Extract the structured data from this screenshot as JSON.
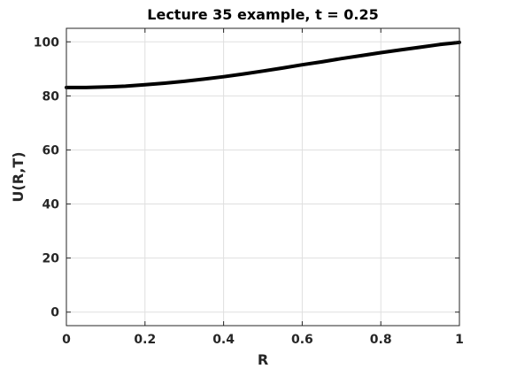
{
  "chart_data": {
    "type": "line",
    "title": "Lecture 35 example, t = 0.25",
    "xlabel": "R",
    "ylabel": "U(R,T)",
    "xlim": [
      0,
      1
    ],
    "ylim": [
      -5,
      105
    ],
    "xticks": [
      0,
      0.2,
      0.4,
      0.6,
      0.8,
      1
    ],
    "xtick_labels": [
      "0",
      "0.2",
      "0.4",
      "0.6",
      "0.8",
      "1"
    ],
    "yticks": [
      0,
      20,
      40,
      60,
      80,
      100
    ],
    "ytick_labels": [
      "0",
      "20",
      "40",
      "60",
      "80",
      "100"
    ],
    "grid": true,
    "series": [
      {
        "color": "#000000",
        "x": [
          0,
          0.05,
          0.1,
          0.15,
          0.2,
          0.25,
          0.3,
          0.35,
          0.4,
          0.45,
          0.5,
          0.55,
          0.6,
          0.65,
          0.7,
          0.75,
          0.8,
          0.85,
          0.9,
          0.95,
          1
        ],
        "y": [
          83.1,
          83.1,
          83.3,
          83.6,
          84.1,
          84.7,
          85.4,
          86.2,
          87.1,
          88.1,
          89.2,
          90.3,
          91.5,
          92.6,
          93.8,
          94.9,
          96.0,
          97.0,
          98.0,
          99.0,
          99.8
        ]
      }
    ]
  }
}
